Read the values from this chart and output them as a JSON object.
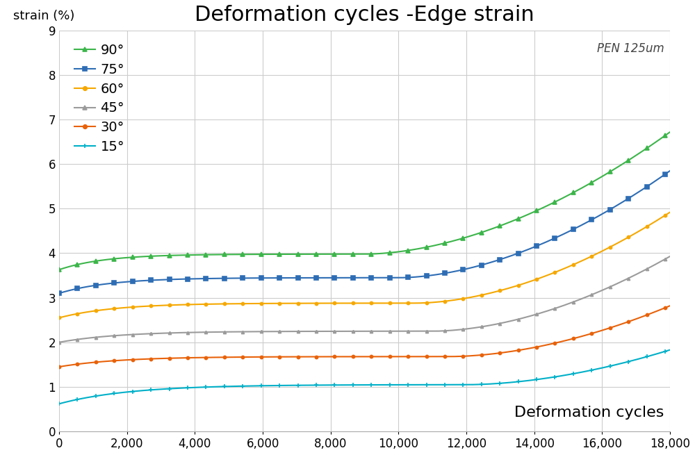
{
  "title": "Deformation cycles -Edge strain",
  "ylabel": "strain (%)",
  "xlabel_inline": "Deformation cycles",
  "annotation": "PEN 125um",
  "xlim": [
    0,
    18000
  ],
  "ylim": [
    0,
    9
  ],
  "xticks": [
    0,
    2000,
    4000,
    6000,
    8000,
    10000,
    12000,
    14000,
    16000,
    18000
  ],
  "xticks_red": [
    0,
    6000,
    12000
  ],
  "yticks": [
    0,
    1,
    2,
    3,
    4,
    5,
    6,
    7,
    8,
    9
  ],
  "series": [
    {
      "label": "90°",
      "color": "#3cb54a",
      "marker": "^",
      "markersize": 4,
      "start": 3.63,
      "plateau": 3.98,
      "end": 6.72,
      "plateau_end_x": 4500,
      "upturn_x": 9000
    },
    {
      "label": "75°",
      "color": "#2e6db4",
      "marker": "s",
      "markersize": 4,
      "start": 3.1,
      "plateau": 3.45,
      "end": 5.85,
      "plateau_end_x": 5000,
      "upturn_x": 10000
    },
    {
      "label": "60°",
      "color": "#f5a800",
      "marker": "o",
      "markersize": 3,
      "start": 2.55,
      "plateau": 2.88,
      "end": 4.92,
      "plateau_end_x": 5500,
      "upturn_x": 10500
    },
    {
      "label": "45°",
      "color": "#9b9b9b",
      "marker": "^",
      "markersize": 3,
      "start": 2.0,
      "plateau": 2.25,
      "end": 3.93,
      "plateau_end_x": 6000,
      "upturn_x": 11000
    },
    {
      "label": "30°",
      "color": "#e8620a",
      "marker": "o",
      "markersize": 3,
      "start": 1.45,
      "plateau": 1.68,
      "end": 2.82,
      "plateau_end_x": 6000,
      "upturn_x": 11500
    },
    {
      "label": "15°",
      "color": "#00b0c8",
      "marker": "+",
      "markersize": 4,
      "start": 0.62,
      "plateau": 1.05,
      "end": 1.83,
      "plateau_end_x": 7000,
      "upturn_x": 12000
    }
  ],
  "background_color": "#ffffff",
  "grid_color": "#cccccc",
  "title_fontsize": 22,
  "axis_label_fontsize": 13,
  "tick_fontsize": 12,
  "legend_fontsize": 14,
  "annotation_fontsize": 12
}
